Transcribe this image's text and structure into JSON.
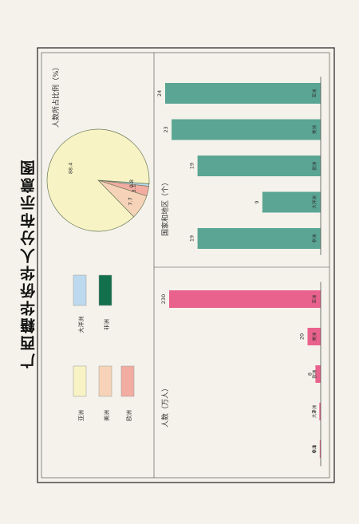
{
  "title": "广西籍华侨华人分布示意图",
  "colors": {
    "asia": "#f7f3c4",
    "america": "#f6d3b8",
    "europe": "#f2aca1",
    "oceania": "#bcd9ef",
    "africa": "#12704d",
    "countries_bar": "#5aa594",
    "population_bar": "#e9628d"
  },
  "chart_data": [
    {
      "type": "pie",
      "title": "人数所占比例（%）",
      "categories": [
        "亚洲",
        "美洲",
        "欧洲",
        "大洋洲",
        "非洲"
      ],
      "values": [
        88.4,
        7.7,
        3.1,
        0.8,
        0.04
      ],
      "labels": [
        "88.4",
        "7.7",
        "3.1",
        "0.8",
        ""
      ]
    },
    {
      "type": "bar",
      "title": "国家和地区（个）",
      "categories": [
        "亚洲",
        "美洲",
        "欧洲",
        "大洋洲",
        "非洲"
      ],
      "values": [
        24,
        23,
        19,
        9,
        19
      ]
    },
    {
      "type": "bar",
      "title": "人数（万人）",
      "categories": [
        "亚洲",
        "美洲",
        "欧洲",
        "大洋洲",
        "非洲"
      ],
      "values": [
        230,
        20,
        8,
        2,
        0.1
      ],
      "labels": [
        "230",
        "20",
        "8",
        "2",
        "0.1"
      ]
    }
  ],
  "legend": [
    {
      "label": "亚洲",
      "color": "#f7f3c4"
    },
    {
      "label": "美洲",
      "color": "#f6d3b8"
    },
    {
      "label": "欧洲",
      "color": "#f2aca1"
    },
    {
      "label": "大洋洲",
      "color": "#bcd9ef"
    },
    {
      "label": "非洲",
      "color": "#12704d"
    }
  ]
}
